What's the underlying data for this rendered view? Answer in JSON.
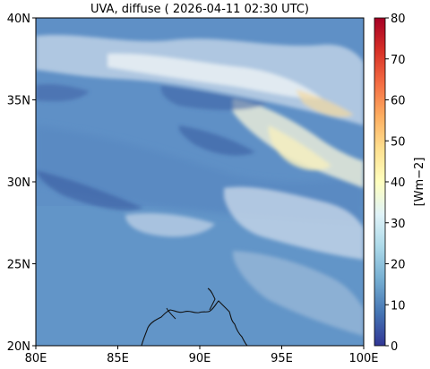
{
  "title": "UVA, diffuse ( 2026-04-11 02:30 UTC)",
  "map": {
    "lon_ticks": [
      "80E",
      "85E",
      "90E",
      "95E",
      "100E"
    ],
    "lat_ticks": [
      "20N",
      "25N",
      "30N",
      "35N",
      "40N"
    ],
    "lon_range": [
      80,
      100
    ],
    "lat_range": [
      20,
      40
    ],
    "background_color": "#5e8fc4"
  },
  "colorbar": {
    "label": "[Wm−2]",
    "ticks": [
      "0",
      "10",
      "20",
      "30",
      "40",
      "50",
      "60",
      "70",
      "80"
    ],
    "range": [
      0,
      80
    ],
    "colormap": "RdYlBu_r",
    "colors": [
      "#313695",
      "#4575b4",
      "#74add1",
      "#abd9e9",
      "#e0f3f8",
      "#ffffbf",
      "#fee090",
      "#fdae61",
      "#f46d43",
      "#d73027",
      "#a50026"
    ]
  }
}
